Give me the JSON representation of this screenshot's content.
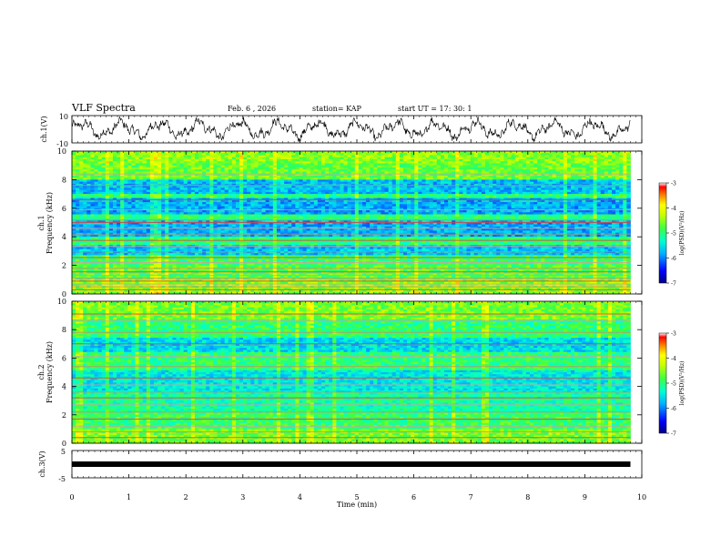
{
  "header": {
    "title": "VLF  Spectra",
    "date": "Feb. 6  , 2026",
    "station": "station= KAP",
    "start": "start  UT  =   17: 30: 1"
  },
  "chart_data": [
    {
      "type": "line",
      "name": "ch.1 waveform",
      "ylabel": "ch.1(V)",
      "yticks": [
        "10",
        "-10"
      ],
      "ylim": [
        -10,
        10
      ],
      "xlim": [
        0,
        10
      ]
    },
    {
      "type": "heatmap",
      "name": "ch.1 spectrogram",
      "ylabel": "ch.1  Frequency (kHz)",
      "ylabel_line1": "ch.1",
      "ylabel_line2": "Frequency (kHz)",
      "yticks": [
        "0",
        "2",
        "4",
        "6",
        "8",
        "10"
      ],
      "ylim": [
        0,
        10
      ],
      "xlim": [
        0,
        9.8
      ],
      "colorbar": {
        "label": "log(PSD)(V²/Hz)",
        "ticks": [
          "-3",
          "-4",
          "-5",
          "-6",
          "-7"
        ],
        "range": [
          -7,
          -3
        ]
      },
      "hum_lines_khz": [
        0.3,
        0.5,
        0.7,
        0.9,
        1.1,
        1.3,
        1.55,
        1.8,
        2.2,
        2.55,
        2.95,
        3.35,
        3.75,
        4.2,
        4.6,
        5.0,
        5.2,
        5.9,
        6.6,
        7.6,
        8.4
      ]
    },
    {
      "type": "heatmap",
      "name": "ch.2 spectrogram",
      "ylabel": "ch.2  Frequency (kHz)",
      "ylabel_line1": "ch.2",
      "ylabel_line2": "Frequency (kHz)",
      "yticks": [
        "0",
        "2",
        "4",
        "6",
        "8",
        "10"
      ],
      "ylim": [
        0,
        10
      ],
      "xlim": [
        0,
        9.8
      ],
      "colorbar": {
        "label": "log(PSD)(V²/Hz)",
        "ticks": [
          "-3",
          "-4",
          "-5",
          "-6",
          "-7"
        ],
        "range": [
          -7,
          -3
        ]
      },
      "hum_lines_khz": [
        0.4,
        0.8,
        1.2,
        1.7,
        2.2,
        2.7,
        3.2,
        3.6,
        4.1,
        4.6,
        5.4,
        6.1,
        7.0,
        7.8,
        8.6,
        9.1
      ]
    },
    {
      "type": "line",
      "name": "ch.3 signal",
      "ylabel": "ch.3(V)",
      "yticks": [
        "5",
        "0",
        "-5"
      ],
      "ylim": [
        -5,
        5
      ],
      "level": 0,
      "xlim": [
        0,
        10
      ]
    }
  ],
  "xaxis": {
    "label": "Time  (min)",
    "ticks": [
      "0",
      "1",
      "2",
      "3",
      "4",
      "5",
      "6",
      "7",
      "8",
      "9",
      "10"
    ],
    "range": [
      0,
      10
    ]
  }
}
